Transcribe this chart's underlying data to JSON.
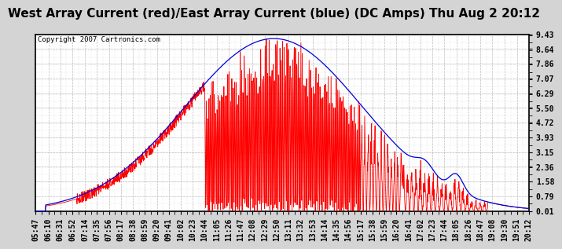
{
  "title": "West Array Current (red)/East Array Current (blue) (DC Amps) Thu Aug 2 20:12",
  "copyright": "Copyright 2007 Cartronics.com",
  "yticks": [
    0.01,
    0.79,
    1.58,
    2.36,
    3.15,
    3.93,
    4.72,
    5.5,
    6.29,
    7.07,
    7.86,
    8.64,
    9.43
  ],
  "ymin": 0.01,
  "ymax": 9.43,
  "bg_color": "#d4d4d4",
  "plot_bg": "#ffffff",
  "grid_color": "#aaaaaa",
  "red_color": "#ff0000",
  "blue_color": "#0000dd",
  "title_font_size": 11,
  "tick_font_size": 7,
  "xtick_labels": [
    "05:47",
    "06:10",
    "06:31",
    "06:52",
    "07:14",
    "07:35",
    "07:56",
    "08:17",
    "08:38",
    "08:59",
    "09:20",
    "09:41",
    "10:02",
    "10:23",
    "10:44",
    "11:05",
    "11:26",
    "11:47",
    "12:08",
    "12:29",
    "12:50",
    "13:11",
    "13:32",
    "13:53",
    "14:14",
    "14:35",
    "14:56",
    "15:17",
    "15:38",
    "15:59",
    "16:20",
    "16:41",
    "17:02",
    "17:23",
    "17:44",
    "18:05",
    "18:26",
    "18:47",
    "19:08",
    "19:30",
    "19:51",
    "20:12"
  ]
}
